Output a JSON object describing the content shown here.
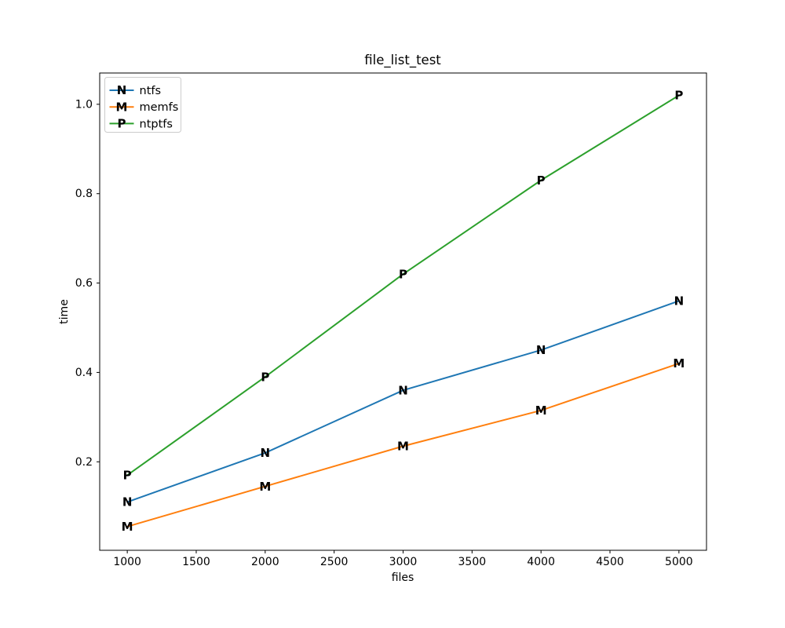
{
  "figure": {
    "background": "#ffffff",
    "text_color": "#000000",
    "axis_color": "#000000",
    "legend_border_color": "#cccccc"
  },
  "chart_data": {
    "type": "line",
    "title": "file_list_test",
    "xlabel": "files",
    "ylabel": "time",
    "x": [
      1000,
      2000,
      3000,
      4000,
      5000
    ],
    "series": [
      {
        "name": "ntfs",
        "marker": "N",
        "color": "#1f77b4",
        "values": [
          0.11,
          0.22,
          0.36,
          0.45,
          0.56
        ]
      },
      {
        "name": "memfs",
        "marker": "M",
        "color": "#ff7f0e",
        "values": [
          0.055,
          0.145,
          0.235,
          0.315,
          0.42
        ]
      },
      {
        "name": "ntptfs",
        "marker": "P",
        "color": "#2ca02c",
        "values": [
          0.17,
          0.39,
          0.62,
          0.83,
          1.02
        ]
      }
    ],
    "xticks": [
      1000,
      1500,
      2000,
      2500,
      3000,
      3500,
      4000,
      4500,
      5000
    ],
    "xtick_labels": [
      "1000",
      "1500",
      "2000",
      "2500",
      "3000",
      "3500",
      "4000",
      "4500",
      "5000"
    ],
    "yticks": [
      0.2,
      0.4,
      0.6,
      0.8,
      1.0
    ],
    "ytick_labels": [
      "0.2",
      "0.4",
      "0.6",
      "0.8",
      "1.0"
    ],
    "xlim": [
      800,
      5200
    ],
    "ylim": [
      0.002,
      1.07
    ],
    "grid": false,
    "legend": {
      "position": "upper left",
      "entries": [
        "ntfs",
        "memfs",
        "ntptfs"
      ]
    }
  }
}
